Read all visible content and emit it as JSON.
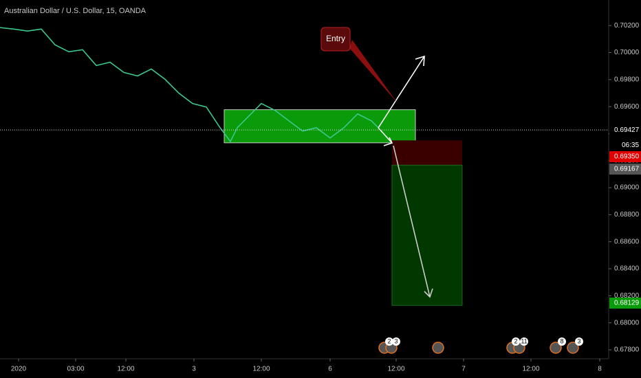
{
  "chart_data": {
    "type": "line",
    "title": "Australian Dollar / U.S. Dollar, 15, OANDA",
    "x": [
      0,
      10,
      20,
      30,
      40,
      50,
      60,
      70,
      80,
      90,
      100,
      110,
      120,
      130,
      140,
      150,
      160,
      167.5,
      172.5,
      180,
      190,
      200,
      210,
      220,
      230,
      240,
      250,
      260,
      270,
      275
    ],
    "values": [
      0.70185,
      0.70174,
      0.70159,
      0.70174,
      0.70057,
      0.70006,
      0.70021,
      0.69904,
      0.69929,
      0.69853,
      0.69827,
      0.69878,
      0.69802,
      0.697,
      0.69623,
      0.69597,
      0.69444,
      0.69342,
      0.69444,
      0.69521,
      0.69623,
      0.69572,
      0.69495,
      0.69419,
      0.69444,
      0.69368,
      0.69444,
      0.69546,
      0.69495,
      0.69444
    ],
    "color": "#3cc88c",
    "xlim": [
      0,
      442
    ],
    "ylim": [
      0.67734,
      0.70389
    ],
    "xticks": [
      {
        "value": 13.5,
        "label": "2020"
      },
      {
        "value": 55,
        "label": "03:00"
      },
      {
        "value": 91.5,
        "label": "12:00"
      },
      {
        "value": 141,
        "label": "3"
      },
      {
        "value": 190,
        "label": "12:00"
      },
      {
        "value": 240,
        "label": "6"
      },
      {
        "value": 288,
        "label": "12:00"
      },
      {
        "value": 337,
        "label": "7"
      },
      {
        "value": 386,
        "label": "12:00"
      },
      {
        "value": 436,
        "label": "8"
      }
    ],
    "yticks": [
      {
        "value": 0.702,
        "label": "0.70200"
      },
      {
        "value": 0.7,
        "label": "0.70000"
      },
      {
        "value": 0.698,
        "label": "0.69800"
      },
      {
        "value": 0.696,
        "label": "0.69600"
      },
      {
        "value": 0.694,
        "label": "0.69400"
      },
      {
        "value": 0.692,
        "label": "0.69200"
      },
      {
        "value": 0.69,
        "label": "0.69000"
      },
      {
        "value": 0.688,
        "label": "0.68800"
      },
      {
        "value": 0.686,
        "label": "0.68600"
      },
      {
        "value": 0.684,
        "label": "0.68400"
      },
      {
        "value": 0.682,
        "label": "0.68200"
      },
      {
        "value": 0.68,
        "label": "0.68000"
      },
      {
        "value": 0.678,
        "label": "0.67800"
      }
    ],
    "last_price": {
      "value": 0.69427,
      "label": "0.69427",
      "countdown": "06:35"
    },
    "zone": {
      "xlim": [
        163,
        302
      ],
      "ylim": [
        0.69332,
        0.69577
      ],
      "color": "#0a9a0a"
    },
    "position": {
      "xlim": [
        285,
        336
      ],
      "stop": {
        "value": 0.6935,
        "label": "0.69350"
      },
      "entry": {
        "value": 0.69167,
        "label": "0.69167"
      },
      "target": {
        "value": 0.68129,
        "label": "0.68129"
      }
    },
    "annotation": "Entry",
    "events": [
      "2",
      "3",
      "2",
      "11",
      "8",
      "3"
    ]
  }
}
